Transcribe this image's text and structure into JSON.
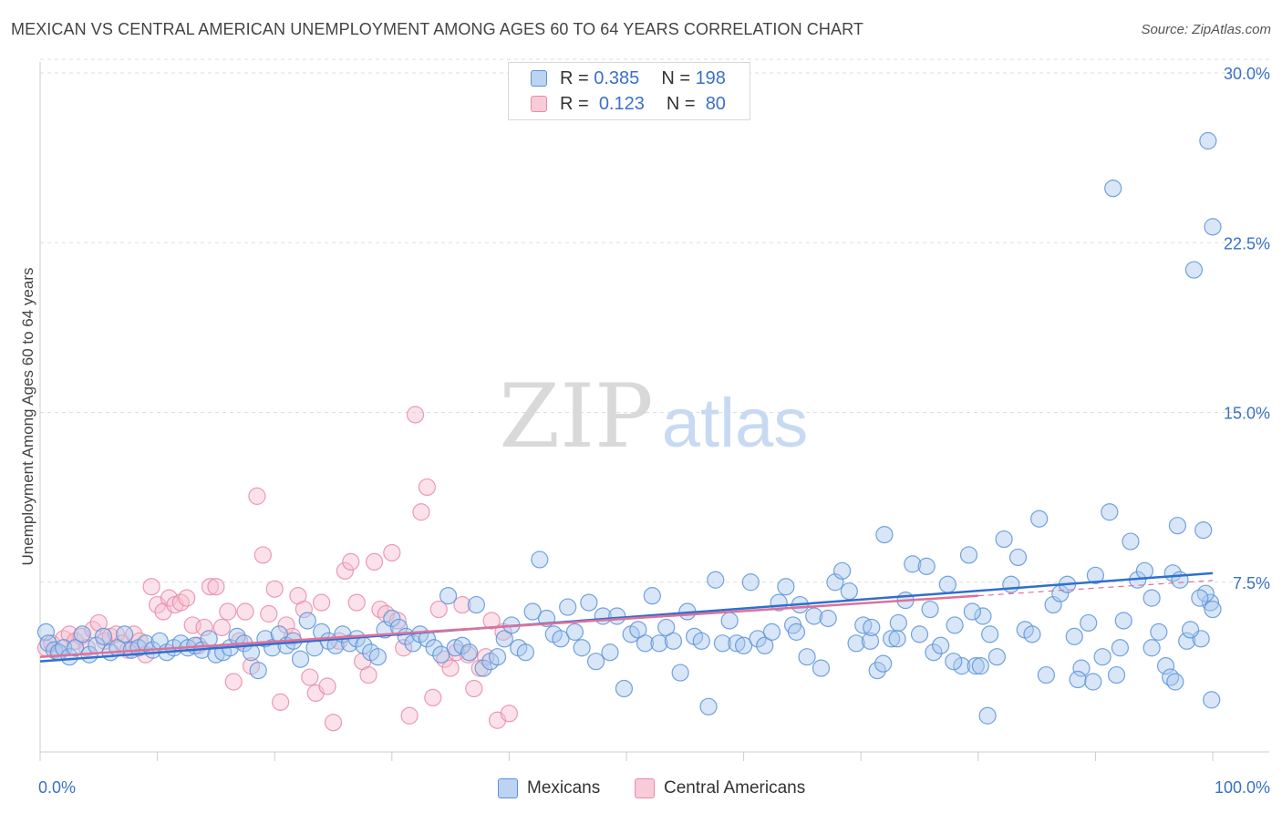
{
  "title": "MEXICAN VS CENTRAL AMERICAN UNEMPLOYMENT AMONG AGES 60 TO 64 YEARS CORRELATION CHART",
  "source": "Source: ZipAtlas.com",
  "watermark": {
    "zip": "ZIP",
    "atlas": "atlas"
  },
  "colors": {
    "mexicans": "#5b93d8",
    "mexicans_fill": "#a9c8ee",
    "central": "#e98aa8",
    "central_fill": "#f6bfd0",
    "axis_text": "#3a70c8",
    "grid": "#dddddd"
  },
  "legend": {
    "r_label": "R =",
    "n_label": "N =",
    "mexicans": {
      "r": "0.385",
      "n": "198"
    },
    "central": {
      "r": "0.123",
      "n": "80"
    }
  },
  "bottom_legend": {
    "mexicans": "Mexicans",
    "central": "Central Americans"
  },
  "chart_data": {
    "type": "scatter",
    "xlabel": "",
    "ylabel": "Unemployment Among Ages 60 to 64 years",
    "xlim": [
      0,
      100
    ],
    "ylim": [
      0,
      30
    ],
    "x_tick_labels": [
      "0.0%",
      "100.0%"
    ],
    "y_ticks": [
      7.5,
      15.0,
      22.5,
      30.0
    ],
    "y_tick_labels": [
      "7.5%",
      "15.0%",
      "22.5%",
      "30.0%"
    ],
    "grid": true,
    "legend_position": "top-center",
    "series": [
      {
        "name": "Mexicans",
        "trend": [
          [
            0,
            4.0
          ],
          [
            100,
            7.9
          ]
        ],
        "points": [
          [
            0.5,
            5.3
          ],
          [
            0.7,
            4.8
          ],
          [
            1.2,
            4.5
          ],
          [
            1.6,
            4.4
          ],
          [
            2,
            4.6
          ],
          [
            2.5,
            4.2
          ],
          [
            3,
            4.6
          ],
          [
            3.6,
            5.2
          ],
          [
            4.2,
            4.3
          ],
          [
            4.8,
            4.7
          ],
          [
            5.4,
            5.1
          ],
          [
            6,
            4.4
          ],
          [
            6.6,
            4.6
          ],
          [
            7.2,
            5.2
          ],
          [
            7.8,
            4.5
          ],
          [
            8.4,
            4.6
          ],
          [
            9,
            4.8
          ],
          [
            9.6,
            4.5
          ],
          [
            10.2,
            4.9
          ],
          [
            10.8,
            4.4
          ],
          [
            11.4,
            4.6
          ],
          [
            12,
            4.8
          ],
          [
            12.6,
            4.6
          ],
          [
            13.2,
            4.7
          ],
          [
            13.8,
            4.5
          ],
          [
            14.4,
            5.0
          ],
          [
            15,
            4.3
          ],
          [
            15.6,
            4.4
          ],
          [
            16.2,
            4.6
          ],
          [
            16.8,
            5.1
          ],
          [
            17.4,
            4.8
          ],
          [
            18,
            4.4
          ],
          [
            18.6,
            3.6
          ],
          [
            19.2,
            5.0
          ],
          [
            19.8,
            4.6
          ],
          [
            20.4,
            5.2
          ],
          [
            21,
            4.7
          ],
          [
            21.6,
            4.9
          ],
          [
            22.2,
            4.1
          ],
          [
            22.8,
            5.8
          ],
          [
            23.4,
            4.6
          ],
          [
            24,
            5.3
          ],
          [
            24.6,
            4.9
          ],
          [
            25.2,
            4.7
          ],
          [
            25.8,
            5.2
          ],
          [
            26.4,
            4.8
          ],
          [
            27,
            5.0
          ],
          [
            27.6,
            4.7
          ],
          [
            28.2,
            4.4
          ],
          [
            28.8,
            4.2
          ],
          [
            29.4,
            5.4
          ],
          [
            30,
            5.9
          ],
          [
            30.6,
            5.5
          ],
          [
            31.2,
            5.1
          ],
          [
            31.8,
            4.8
          ],
          [
            32.4,
            5.2
          ],
          [
            33,
            5.0
          ],
          [
            33.6,
            4.6
          ],
          [
            34.2,
            4.3
          ],
          [
            34.8,
            6.9
          ],
          [
            35.4,
            4.6
          ],
          [
            36,
            4.7
          ],
          [
            36.6,
            4.4
          ],
          [
            37.2,
            6.5
          ],
          [
            37.8,
            3.7
          ],
          [
            38.4,
            4.0
          ],
          [
            39,
            4.2
          ],
          [
            39.6,
            5.0
          ],
          [
            40.2,
            5.6
          ],
          [
            40.8,
            4.6
          ],
          [
            41.4,
            4.4
          ],
          [
            42,
            6.2
          ],
          [
            42.6,
            8.5
          ],
          [
            43.2,
            5.9
          ],
          [
            43.8,
            5.2
          ],
          [
            44.4,
            5.0
          ],
          [
            45,
            6.4
          ],
          [
            45.6,
            5.3
          ],
          [
            46.2,
            4.6
          ],
          [
            46.8,
            6.6
          ],
          [
            47.4,
            4.0
          ],
          [
            48,
            6.0
          ],
          [
            48.6,
            4.4
          ],
          [
            49.2,
            6.0
          ],
          [
            49.8,
            2.8
          ],
          [
            50.4,
            5.2
          ],
          [
            51,
            5.4
          ],
          [
            51.6,
            4.8
          ],
          [
            52.2,
            6.9
          ],
          [
            52.8,
            4.8
          ],
          [
            53.4,
            5.5
          ],
          [
            54,
            4.9
          ],
          [
            54.6,
            3.5
          ],
          [
            55.2,
            6.2
          ],
          [
            55.8,
            5.1
          ],
          [
            56.4,
            4.9
          ],
          [
            57,
            2.0
          ],
          [
            57.6,
            7.6
          ],
          [
            58.2,
            4.8
          ],
          [
            58.8,
            5.8
          ],
          [
            59.4,
            4.8
          ],
          [
            60,
            4.7
          ],
          [
            60.6,
            7.5
          ],
          [
            61.2,
            5.0
          ],
          [
            61.8,
            4.7
          ],
          [
            62.4,
            5.3
          ],
          [
            63,
            6.6
          ],
          [
            63.6,
            7.3
          ],
          [
            64.2,
            5.6
          ],
          [
            64.8,
            6.5
          ],
          [
            65.4,
            4.2
          ],
          [
            66,
            6.0
          ],
          [
            66.6,
            3.7
          ],
          [
            67.2,
            5.9
          ],
          [
            67.8,
            7.5
          ],
          [
            68.4,
            8.0
          ],
          [
            69,
            7.1
          ],
          [
            69.6,
            4.8
          ],
          [
            70.2,
            5.6
          ],
          [
            70.8,
            4.9
          ],
          [
            71.4,
            3.6
          ],
          [
            72,
            9.6
          ],
          [
            72.6,
            5.0
          ],
          [
            73.2,
            5.7
          ],
          [
            73.8,
            6.7
          ],
          [
            74.4,
            8.3
          ],
          [
            75,
            5.2
          ],
          [
            75.6,
            8.2
          ],
          [
            76.2,
            4.4
          ],
          [
            76.8,
            4.7
          ],
          [
            77.4,
            7.4
          ],
          [
            78,
            5.6
          ],
          [
            78.6,
            3.8
          ],
          [
            79.2,
            8.7
          ],
          [
            79.8,
            3.8
          ],
          [
            80.4,
            6.0
          ],
          [
            81,
            5.2
          ],
          [
            81.6,
            4.2
          ],
          [
            82.2,
            9.4
          ],
          [
            82.8,
            7.4
          ],
          [
            83.4,
            8.6
          ],
          [
            84,
            5.4
          ],
          [
            84.6,
            5.2
          ],
          [
            85.2,
            10.3
          ],
          [
            85.8,
            3.4
          ],
          [
            86.4,
            6.5
          ],
          [
            87,
            7.0
          ],
          [
            87.6,
            7.4
          ],
          [
            88.2,
            5.1
          ],
          [
            88.8,
            3.7
          ],
          [
            89.4,
            5.7
          ],
          [
            90,
            7.8
          ],
          [
            90.6,
            4.2
          ],
          [
            91.2,
            10.6
          ],
          [
            91.8,
            3.4
          ],
          [
            92.4,
            5.8
          ],
          [
            93,
            9.3
          ],
          [
            93.6,
            7.6
          ],
          [
            94.2,
            8.0
          ],
          [
            94.8,
            4.6
          ],
          [
            95.4,
            5.3
          ],
          [
            96,
            3.8
          ],
          [
            96.6,
            7.9
          ],
          [
            97.2,
            7.6
          ],
          [
            97.8,
            4.9
          ],
          [
            98.4,
            21.3
          ],
          [
            99,
            5.0
          ],
          [
            99.6,
            27.0
          ],
          [
            100,
            23.2
          ],
          [
            99.2,
            9.8
          ],
          [
            99.8,
            6.6
          ],
          [
            100,
            6.3
          ],
          [
            96.4,
            3.3
          ],
          [
            97,
            10.0
          ],
          [
            91.5,
            24.9
          ],
          [
            88.5,
            3.2
          ],
          [
            64.5,
            5.3
          ],
          [
            99.9,
            2.3
          ],
          [
            99.4,
            7.0
          ],
          [
            98.9,
            6.8
          ],
          [
            98.1,
            5.4
          ],
          [
            96.8,
            3.1
          ],
          [
            94.8,
            6.8
          ],
          [
            92.1,
            4.6
          ],
          [
            89.8,
            3.1
          ],
          [
            80.8,
            1.6
          ],
          [
            80.2,
            3.8
          ],
          [
            79.5,
            6.2
          ],
          [
            77.9,
            4.0
          ],
          [
            75.9,
            6.3
          ],
          [
            73.1,
            5.0
          ],
          [
            71.9,
            3.9
          ],
          [
            70.9,
            5.5
          ]
        ]
      },
      {
        "name": "Central Americans",
        "trend": [
          [
            0,
            4.2
          ],
          [
            80,
            6.9
          ]
        ],
        "points": [
          [
            0.5,
            4.6
          ],
          [
            1,
            4.8
          ],
          [
            1.5,
            4.4
          ],
          [
            2,
            5.0
          ],
          [
            2.5,
            5.2
          ],
          [
            3,
            4.9
          ],
          [
            3.5,
            5.1
          ],
          [
            4,
            4.6
          ],
          [
            4.5,
            5.4
          ],
          [
            5,
            5.7
          ],
          [
            5.5,
            4.9
          ],
          [
            6,
            5.1
          ],
          [
            6.5,
            5.2
          ],
          [
            7,
            4.8
          ],
          [
            7.5,
            4.5
          ],
          [
            8,
            5.2
          ],
          [
            8.5,
            4.9
          ],
          [
            9,
            4.3
          ],
          [
            9.5,
            7.3
          ],
          [
            10,
            6.5
          ],
          [
            10.5,
            6.2
          ],
          [
            11,
            6.8
          ],
          [
            11.5,
            6.5
          ],
          [
            12,
            6.6
          ],
          [
            12.5,
            6.8
          ],
          [
            13,
            5.6
          ],
          [
            13.5,
            4.7
          ],
          [
            14,
            5.5
          ],
          [
            14.5,
            7.3
          ],
          [
            15,
            7.3
          ],
          [
            15.5,
            5.5
          ],
          [
            16,
            6.2
          ],
          [
            16.5,
            3.1
          ],
          [
            17,
            4.9
          ],
          [
            17.5,
            6.2
          ],
          [
            18,
            3.8
          ],
          [
            18.5,
            11.3
          ],
          [
            19,
            8.7
          ],
          [
            19.5,
            6.1
          ],
          [
            20,
            7.2
          ],
          [
            20.5,
            2.2
          ],
          [
            21,
            5.6
          ],
          [
            21.5,
            5.1
          ],
          [
            22,
            6.9
          ],
          [
            22.5,
            6.3
          ],
          [
            23,
            3.3
          ],
          [
            23.5,
            2.6
          ],
          [
            24,
            6.6
          ],
          [
            24.5,
            2.9
          ],
          [
            25,
            1.3
          ],
          [
            25.5,
            4.9
          ],
          [
            26,
            8.0
          ],
          [
            26.5,
            8.4
          ],
          [
            27,
            6.6
          ],
          [
            27.5,
            4.0
          ],
          [
            28,
            3.4
          ],
          [
            28.5,
            8.4
          ],
          [
            29,
            6.3
          ],
          [
            29.5,
            6.1
          ],
          [
            30,
            8.8
          ],
          [
            30.5,
            5.8
          ],
          [
            31,
            4.6
          ],
          [
            31.5,
            1.6
          ],
          [
            32,
            14.9
          ],
          [
            32.5,
            10.6
          ],
          [
            33,
            11.7
          ],
          [
            33.5,
            2.4
          ],
          [
            34,
            6.3
          ],
          [
            34.5,
            4.1
          ],
          [
            35,
            3.7
          ],
          [
            35.5,
            4.4
          ],
          [
            36,
            6.5
          ],
          [
            36.5,
            4.3
          ],
          [
            37,
            2.8
          ],
          [
            37.5,
            3.7
          ],
          [
            38,
            4.2
          ],
          [
            38.5,
            5.8
          ],
          [
            39,
            1.4
          ],
          [
            39.5,
            5.3
          ],
          [
            40,
            1.7
          ]
        ]
      }
    ]
  }
}
